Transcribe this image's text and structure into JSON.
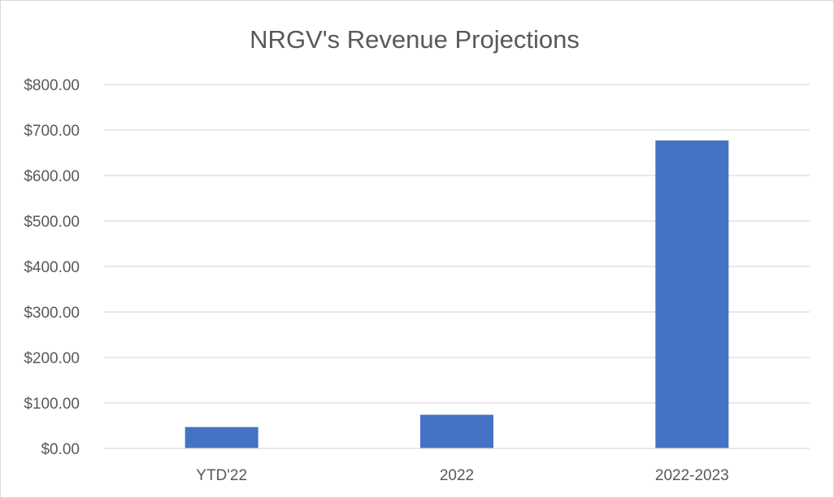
{
  "chart_data": {
    "type": "bar",
    "title": "NRGV's Revenue Projections",
    "xlabel": "",
    "ylabel": "",
    "categories": [
      "YTD'22",
      "2022",
      "2022-2023"
    ],
    "series": [
      {
        "values": [
          47,
          74,
          677
        ]
      }
    ],
    "ylim": [
      0,
      800
    ],
    "yticks": [
      0,
      100,
      200,
      300,
      400,
      500,
      600,
      700,
      800
    ],
    "ytick_labels": [
      "$0.00",
      "$100.00",
      "$200.00",
      "$300.00",
      "$400.00",
      "$500.00",
      "$600.00",
      "$700.00",
      "$800.00"
    ],
    "grid": true,
    "legend": "none",
    "colors": {
      "bar": "#4472c4"
    }
  }
}
